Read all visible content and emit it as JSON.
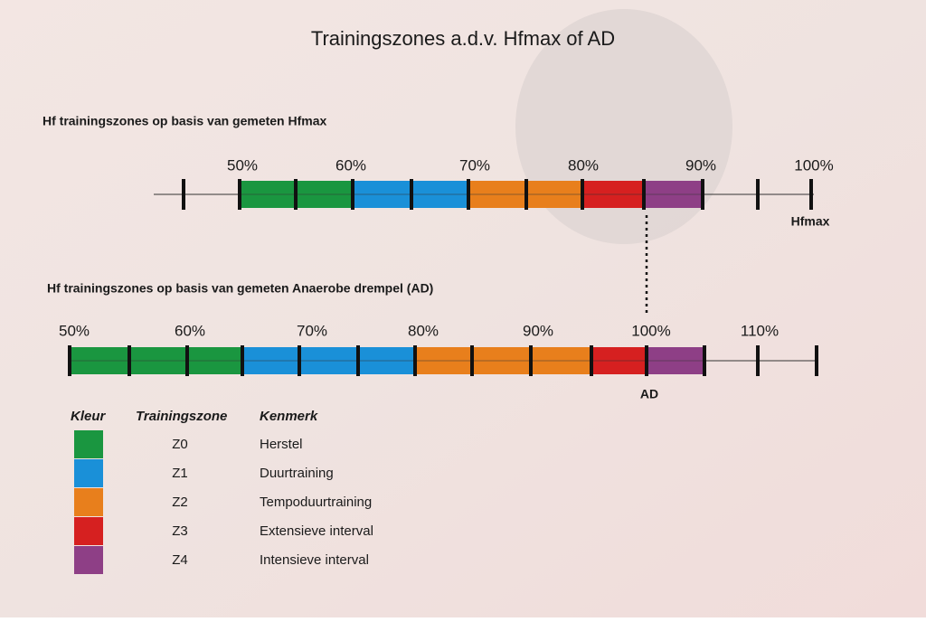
{
  "title": "Trainingszones a.d.v. Hfmax of AD",
  "sections": [
    {
      "heading": "Hf trainingszones op basis van gemeten Hfmax",
      "scale_labels": [
        "50%",
        "60%",
        "70%",
        "80%",
        "90%",
        "100%"
      ],
      "reference_label": "Hfmax"
    },
    {
      "heading": "Hf trainingszones op basis van gemeten Anaerobe drempel (AD)",
      "scale_labels": [
        "50%",
        "60%",
        "70%",
        "80%",
        "90%",
        "100%",
        "110%"
      ],
      "reference_label": "AD"
    }
  ],
  "legend": {
    "headers": [
      "Kleur",
      "Trainingszone",
      "Kenmerk"
    ],
    "rows": [
      {
        "zone": "Z0",
        "description": "Herstel",
        "color": "#1a9640"
      },
      {
        "zone": "Z1",
        "description": "Duurtraining",
        "color": "#1a90d8"
      },
      {
        "zone": "Z2",
        "description": "Tempoduurtraining",
        "color": "#e87f1c"
      },
      {
        "zone": "Z3",
        "description": "Extensieve interval",
        "color": "#d62020"
      },
      {
        "zone": "Z4",
        "description": "Intensieve interval",
        "color": "#8e3f86"
      }
    ]
  }
}
